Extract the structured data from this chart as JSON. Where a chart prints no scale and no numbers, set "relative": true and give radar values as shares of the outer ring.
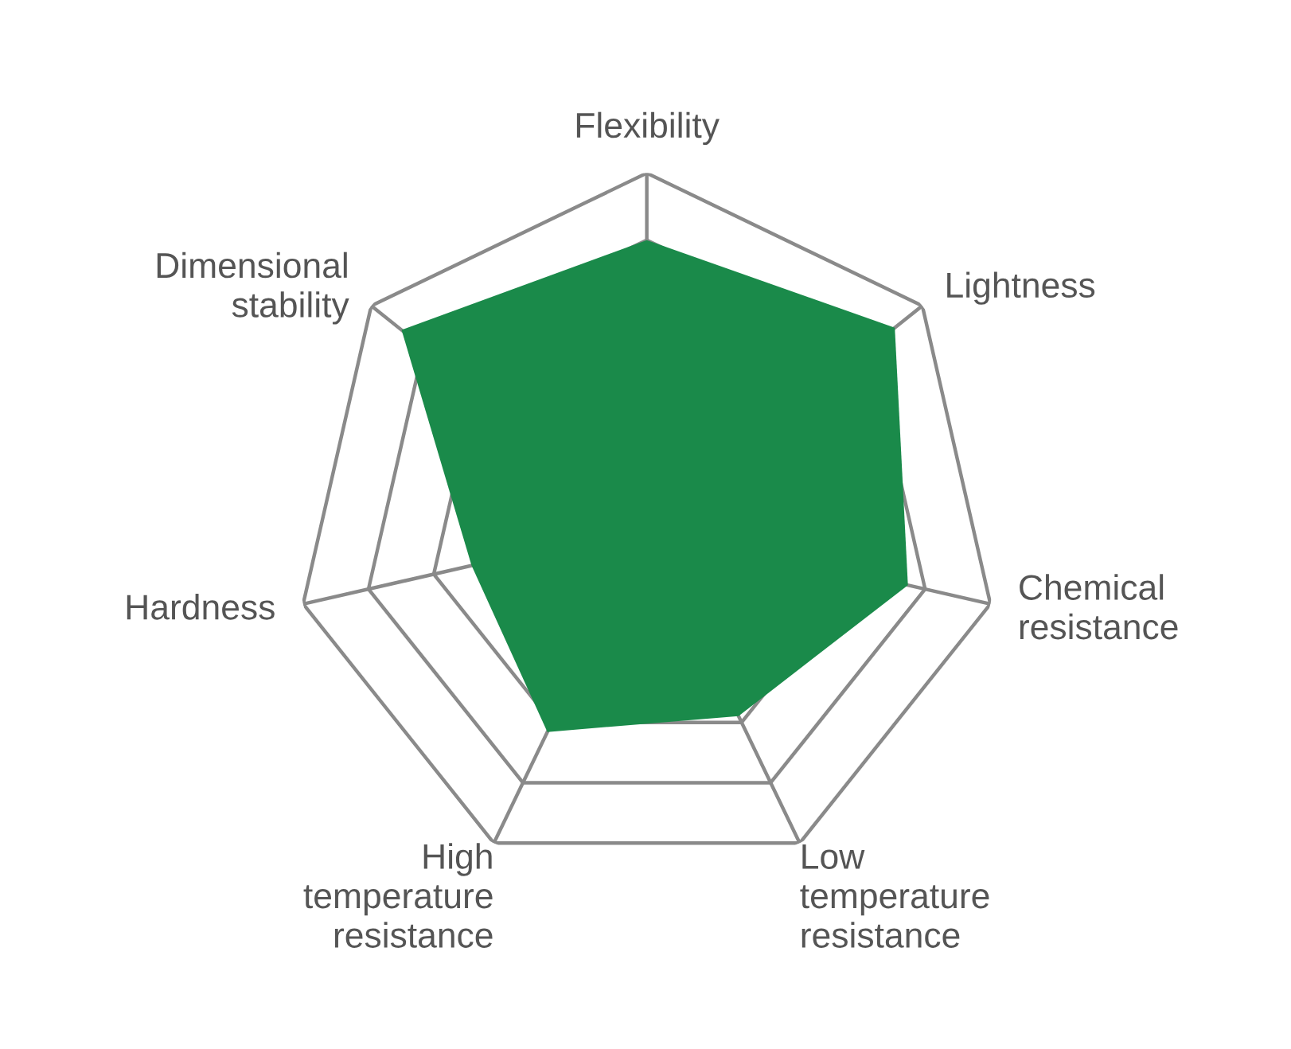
{
  "chart_data": {
    "type": "radar",
    "relative": true,
    "categories": [
      "Flexibility",
      "Lightness",
      "Chemical\nresistance",
      "Low\ntemperature\nresistance",
      "High\ntemperature\nresistance",
      "Hardness",
      "Dimensional\nstability"
    ],
    "series": [
      {
        "color": "#1a8a4a",
        "values": [
          0.81,
          0.9,
          0.76,
          0.6,
          0.65,
          0.51,
          0.89
        ]
      }
    ],
    "grid": true
  }
}
